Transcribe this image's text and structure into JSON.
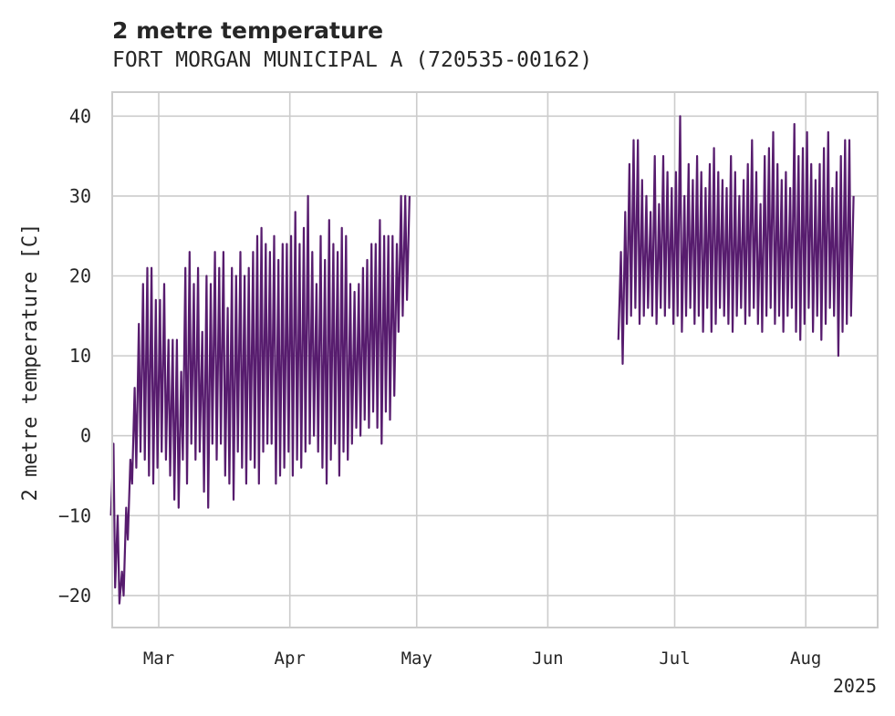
{
  "chart_data": {
    "type": "line",
    "title": "2 metre temperature",
    "subtitle": "FORT MORGAN MUNICIPAL A (720535-00162)",
    "ylabel": "2 metre temperature [C]",
    "xlabel": "",
    "x_tick_labels": [
      "Mar",
      "Apr",
      "May",
      "Jun",
      "Jul",
      "Aug"
    ],
    "x_tick_dates": [
      "2025-03-01",
      "2025-04-01",
      "2025-05-01",
      "2025-06-01",
      "2025-07-01",
      "2025-08-01"
    ],
    "x_offset_label": "2025",
    "xlim": [
      "2025-02-18",
      "2025-08-18"
    ],
    "y_ticks": [
      40,
      30,
      20,
      10,
      0,
      -10,
      -20
    ],
    "ylim": [
      -24,
      43
    ],
    "grid": true,
    "color": "#571c6e",
    "series": [
      {
        "x": [
          "2025-02-18",
          "2025-02-19",
          "2025-02-20",
          "2025-02-21",
          "2025-02-22",
          "2025-02-23",
          "2025-02-24",
          "2025-02-25",
          "2025-02-26",
          "2025-02-27",
          "2025-02-28",
          "2025-03-01",
          "2025-03-02",
          "2025-03-03",
          "2025-03-04",
          "2025-03-05",
          "2025-03-06",
          "2025-03-07",
          "2025-03-08",
          "2025-03-09",
          "2025-03-10",
          "2025-03-11",
          "2025-03-12",
          "2025-03-13",
          "2025-03-14",
          "2025-03-15",
          "2025-03-16",
          "2025-03-17",
          "2025-03-18",
          "2025-03-19",
          "2025-03-20",
          "2025-03-21",
          "2025-03-22",
          "2025-03-23",
          "2025-03-24",
          "2025-03-25",
          "2025-03-26",
          "2025-03-27",
          "2025-03-28",
          "2025-03-29",
          "2025-03-30",
          "2025-03-31",
          "2025-04-01",
          "2025-04-02",
          "2025-04-03",
          "2025-04-04",
          "2025-04-05",
          "2025-04-06",
          "2025-04-07",
          "2025-04-08",
          "2025-04-09",
          "2025-04-10",
          "2025-04-11",
          "2025-04-12",
          "2025-04-13",
          "2025-04-14",
          "2025-04-15",
          "2025-04-16",
          "2025-04-17",
          "2025-04-18",
          "2025-04-19",
          "2025-04-20",
          "2025-04-21",
          "2025-04-22",
          "2025-04-23",
          "2025-04-24",
          "2025-04-25",
          "2025-04-26",
          "2025-04-27",
          "2025-04-28",
          "2025-04-29",
          "2025-04-30",
          "2025-05-01",
          "2025-05-02",
          "2025-05-03",
          "2025-05-04",
          "2025-05-05",
          "2025-05-06",
          "2025-05-07",
          "2025-05-08",
          "2025-05-09",
          "2025-05-10",
          "2025-05-11",
          "2025-05-12",
          "2025-05-13",
          "2025-05-14",
          "2025-05-15",
          "2025-05-16",
          "2025-05-17",
          "2025-05-18",
          "2025-05-19",
          "2025-05-20",
          "2025-05-21",
          "2025-05-22",
          "2025-05-23",
          "2025-05-24",
          "2025-05-25",
          "2025-05-26",
          "2025-05-27",
          "2025-05-28",
          "2025-05-29",
          "2025-05-30",
          "2025-05-31",
          "2025-06-01",
          "2025-06-02",
          "2025-06-03",
          "2025-06-04",
          "2025-06-05",
          "2025-06-06",
          "2025-06-07",
          "2025-06-08",
          "2025-06-09",
          "2025-06-10",
          "2025-06-11",
          "2025-06-12",
          "2025-06-13",
          "2025-06-14",
          "2025-06-15",
          "2025-06-16",
          "2025-06-17",
          "2025-06-18",
          "2025-06-19",
          "2025-06-20",
          "2025-06-21",
          "2025-06-22",
          "2025-06-23",
          "2025-06-24",
          "2025-06-25",
          "2025-06-26",
          "2025-06-27",
          "2025-06-28",
          "2025-06-29",
          "2025-06-30",
          "2025-07-01",
          "2025-07-02",
          "2025-07-03",
          "2025-07-04",
          "2025-07-05",
          "2025-07-06",
          "2025-07-07",
          "2025-07-08",
          "2025-07-09",
          "2025-07-10",
          "2025-07-11",
          "2025-07-12",
          "2025-07-13",
          "2025-07-14",
          "2025-07-15",
          "2025-07-16",
          "2025-07-17",
          "2025-07-18",
          "2025-07-19",
          "2025-07-20",
          "2025-07-21",
          "2025-07-22",
          "2025-07-23",
          "2025-07-24",
          "2025-07-25",
          "2025-07-26",
          "2025-07-27",
          "2025-07-28",
          "2025-07-29",
          "2025-07-30",
          "2025-07-31",
          "2025-08-01",
          "2025-08-02",
          "2025-08-03",
          "2025-08-04",
          "2025-08-05",
          "2025-08-06",
          "2025-08-07",
          "2025-08-08",
          "2025-08-09",
          "2025-08-10",
          "2025-08-11",
          "2025-08-12",
          "2025-08-13",
          "2025-08-14",
          "2025-08-15",
          "2025-08-16"
        ],
        "y_min": [
          -10,
          -19,
          -21,
          -20,
          -13,
          -6,
          -4,
          -2,
          -3,
          -5,
          -6,
          -4,
          -2,
          -3,
          -5,
          -8,
          -9,
          -3,
          -6,
          -1,
          -3,
          -2,
          -7,
          -9,
          -1,
          -3,
          -1,
          -5,
          -6,
          -8,
          -2,
          -4,
          -6,
          -3,
          -4,
          -6,
          -2,
          -1,
          -1,
          -6,
          -5,
          -4,
          -2,
          -5,
          -3,
          -4,
          -2,
          -1,
          0,
          -2,
          -4,
          -6,
          -3,
          -1,
          -5,
          -2,
          -3,
          -1,
          1,
          0,
          2,
          1,
          3,
          1,
          -1,
          3,
          2,
          5,
          13,
          15,
          17,
          null,
          null,
          null,
          null,
          null,
          null,
          null,
          null,
          null,
          null,
          null,
          null,
          null,
          null,
          null,
          null,
          null,
          null,
          null,
          null,
          null,
          null,
          null,
          null,
          null,
          null,
          null,
          null,
          null,
          null,
          null,
          null,
          null,
          null,
          null,
          null,
          null,
          null,
          null,
          null,
          null,
          null,
          null,
          null,
          null,
          null,
          null,
          null,
          null,
          12,
          9,
          14,
          15,
          16,
          14,
          15,
          16,
          15,
          14,
          16,
          15,
          16,
          14,
          15,
          13,
          15,
          16,
          14,
          15,
          13,
          16,
          13,
          14,
          16,
          15,
          14,
          13,
          15,
          16,
          14,
          15,
          16,
          14,
          13,
          15,
          16,
          14,
          15,
          13,
          15,
          16,
          13,
          12,
          14,
          16,
          13,
          15,
          12,
          14,
          16,
          15,
          10,
          13,
          14,
          15
        ],
        "y_max": [
          -1,
          -10,
          -17,
          -9,
          -3,
          6,
          14,
          19,
          21,
          21,
          17,
          17,
          19,
          12,
          12,
          12,
          8,
          21,
          23,
          19,
          21,
          13,
          20,
          19,
          23,
          21,
          23,
          16,
          21,
          20,
          23,
          20,
          21,
          23,
          25,
          26,
          24,
          23,
          25,
          22,
          24,
          24,
          25,
          28,
          24,
          26,
          30,
          23,
          19,
          25,
          22,
          27,
          24,
          23,
          26,
          25,
          19,
          18,
          19,
          21,
          22,
          24,
          24,
          27,
          25,
          25,
          25,
          24,
          30,
          30,
          30,
          null,
          null,
          null,
          null,
          null,
          null,
          null,
          null,
          null,
          null,
          null,
          null,
          null,
          null,
          null,
          null,
          null,
          null,
          null,
          null,
          null,
          null,
          null,
          null,
          null,
          null,
          null,
          null,
          null,
          null,
          null,
          null,
          null,
          null,
          null,
          null,
          null,
          null,
          null,
          null,
          null,
          null,
          null,
          null,
          null,
          null,
          null,
          null,
          null,
          23,
          28,
          34,
          37,
          37,
          32,
          30,
          28,
          35,
          29,
          35,
          33,
          31,
          33,
          40,
          30,
          34,
          32,
          35,
          33,
          31,
          34,
          36,
          33,
          32,
          31,
          35,
          33,
          30,
          32,
          34,
          37,
          33,
          29,
          35,
          36,
          38,
          34,
          32,
          33,
          31,
          39,
          35,
          36,
          38,
          34,
          32,
          34,
          36,
          38,
          31,
          33,
          35,
          37,
          37,
          30
        ]
      }
    ]
  }
}
